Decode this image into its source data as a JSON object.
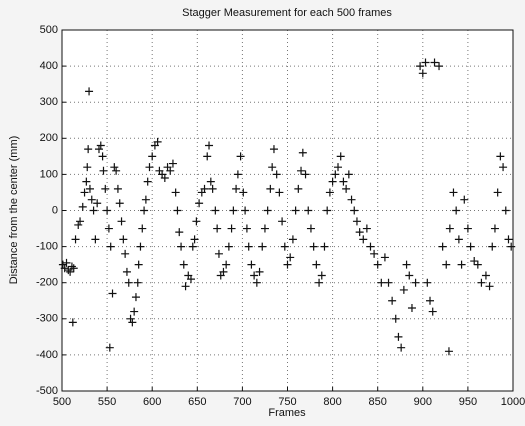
{
  "chart_data": {
    "type": "scatter",
    "title": "Stagger Measurement for each 500 frames",
    "x_label": "Frames",
    "y_label": "Distance from the center (mm)",
    "xlim": [
      500,
      1000
    ],
    "xticks": [
      500,
      550,
      600,
      650,
      700,
      750,
      800,
      850,
      900,
      950,
      1000
    ],
    "ylim": [
      -500,
      500
    ],
    "yticks": [
      -500,
      -400,
      -300,
      -200,
      -100,
      0,
      100,
      200,
      300,
      400,
      500
    ],
    "grid": true,
    "color": "#111111",
    "marker": "+",
    "x": [
      501,
      503,
      505,
      507,
      509,
      511,
      513,
      512,
      515,
      518,
      520,
      523,
      525,
      527,
      528,
      529,
      530,
      531,
      533,
      535,
      537,
      539,
      541,
      543,
      545,
      546,
      548,
      550,
      552,
      553,
      554,
      556,
      558,
      560,
      562,
      564,
      566,
      568,
      570,
      572,
      574,
      576,
      578,
      580,
      582,
      584,
      585,
      587,
      589,
      591,
      593,
      595,
      597,
      600,
      603,
      606,
      608,
      611,
      614,
      617,
      620,
      623,
      626,
      628,
      630,
      632,
      635,
      637,
      640,
      643,
      645,
      647,
      649,
      652,
      655,
      658,
      661,
      663,
      665,
      667,
      670,
      672,
      674,
      676,
      679,
      682,
      685,
      688,
      690,
      693,
      695,
      698,
      701,
      703,
      705,
      707,
      710,
      713,
      716,
      719,
      722,
      725,
      728,
      731,
      733,
      735,
      738,
      741,
      744,
      747,
      750,
      753,
      756,
      759,
      762,
      765,
      767,
      770,
      773,
      776,
      779,
      782,
      785,
      788,
      791,
      794,
      797,
      800,
      803,
      806,
      809,
      812,
      815,
      818,
      821,
      824,
      827,
      830,
      834,
      838,
      842,
      846,
      850,
      854,
      858,
      862,
      866,
      870,
      873,
      876,
      879,
      882,
      885,
      888,
      892,
      897,
      900,
      903,
      905,
      908,
      911,
      913,
      918,
      922,
      926,
      929,
      930,
      934,
      937,
      940,
      943,
      946,
      950,
      953,
      957,
      961,
      965,
      970,
      974,
      977,
      980,
      983,
      986,
      989,
      992,
      995,
      998
    ],
    "values": [
      -150,
      -160,
      -145,
      -165,
      -170,
      -155,
      -160,
      -310,
      -80,
      -40,
      -30,
      10,
      50,
      80,
      120,
      170,
      330,
      60,
      30,
      0,
      -80,
      20,
      170,
      180,
      150,
      110,
      60,
      0,
      -50,
      -380,
      -100,
      -230,
      120,
      110,
      60,
      20,
      -30,
      -80,
      -120,
      -170,
      -200,
      -300,
      -310,
      -280,
      -240,
      -200,
      -150,
      -100,
      -50,
      0,
      30,
      80,
      120,
      150,
      180,
      190,
      110,
      100,
      90,
      120,
      110,
      130,
      50,
      0,
      -60,
      -100,
      -150,
      -210,
      -180,
      -190,
      -100,
      -80,
      -30,
      20,
      50,
      60,
      150,
      180,
      80,
      60,
      0,
      -50,
      -120,
      -180,
      -170,
      -150,
      -100,
      -50,
      0,
      60,
      100,
      150,
      50,
      0,
      -50,
      -100,
      -150,
      -180,
      -200,
      -170,
      -100,
      -50,
      0,
      60,
      120,
      170,
      100,
      50,
      -30,
      -100,
      -150,
      -130,
      -80,
      0,
      60,
      110,
      160,
      100,
      0,
      -50,
      -100,
      -150,
      -200,
      -180,
      -100,
      0,
      50,
      80,
      100,
      120,
      150,
      80,
      60,
      100,
      30,
      0,
      -30,
      -60,
      -80,
      -50,
      -100,
      -120,
      -150,
      -200,
      -130,
      -200,
      -250,
      -300,
      -350,
      -380,
      -220,
      -150,
      -180,
      -270,
      -200,
      400,
      380,
      410,
      -200,
      -250,
      -280,
      410,
      400,
      -100,
      -150,
      -390,
      -50,
      50,
      0,
      -80,
      -150,
      30,
      -50,
      -100,
      -140,
      -150,
      -200,
      -180,
      -210,
      -100,
      -50,
      50,
      150,
      120,
      0,
      -80,
      -100
    ]
  }
}
